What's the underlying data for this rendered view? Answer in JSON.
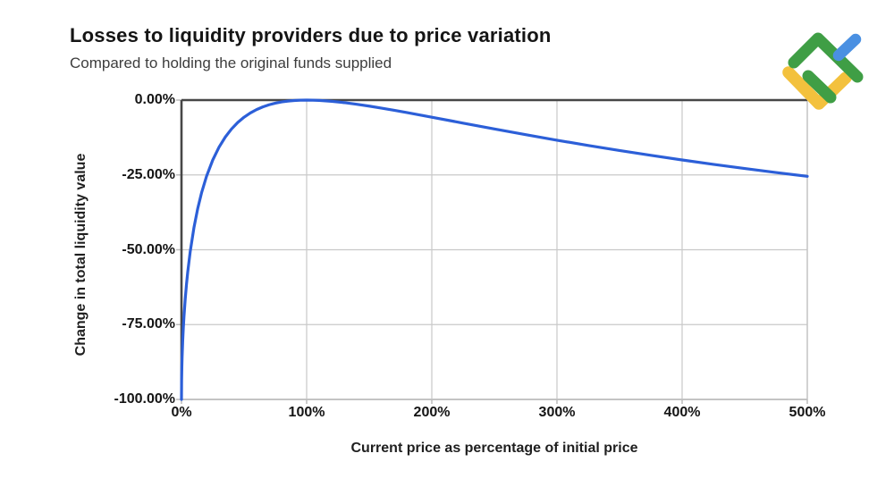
{
  "header": {
    "title": "Losses to liquidity providers due to price variation",
    "subtitle": "Compared to holding the original funds supplied"
  },
  "logo": {
    "name": "litefinance-logo",
    "colors": {
      "green": "#3f9e45",
      "blue": "#4a90e2",
      "yellow": "#f3c13d"
    }
  },
  "colors": {
    "curve": "#2c5fd8",
    "axis_dark": "#474747",
    "border_light": "#c4c4c4",
    "grid": "#c9c9c9",
    "tick_mark": "#bbbbbb",
    "tick_text": "#141414",
    "title_text": "#151515",
    "subtitle_text": "#3d3d3d"
  },
  "chart_data": {
    "type": "line",
    "title": "Losses to liquidity providers due to price variation",
    "subtitle": "Compared to holding the original funds supplied",
    "xlabel": "Current price as percentage of initial price",
    "ylabel": "Change in total liquidity value",
    "x_range": [
      0,
      500
    ],
    "y_range": [
      -100,
      0
    ],
    "x_ticks": {
      "values": [
        0,
        100,
        200,
        300,
        400,
        500
      ],
      "labels": [
        "0%",
        "100%",
        "200%",
        "300%",
        "400%",
        "500%"
      ]
    },
    "y_ticks": {
      "values": [
        0,
        -25,
        -50,
        -75,
        -100
      ],
      "labels": [
        "0.00%",
        "-25.00%",
        "-50.00%",
        "-75.00%",
        "-100.00%"
      ]
    },
    "grid": true,
    "legend": "none",
    "series": [
      {
        "name": "Change in total liquidity value vs holding",
        "color": "#2c5fd8",
        "points": [
          [
            0,
            -100
          ],
          [
            0.1,
            -93.68
          ],
          [
            0.3,
            -89.08
          ],
          [
            0.5,
            -85.93
          ],
          [
            1,
            -80.2
          ],
          [
            1.5,
            -75.87
          ],
          [
            2,
            -72.27
          ],
          [
            3,
            -66.37
          ],
          [
            4,
            -61.54
          ],
          [
            5,
            -57.41
          ],
          [
            7,
            -50.55
          ],
          [
            10,
            -42.5
          ],
          [
            13,
            -36.19
          ],
          [
            16,
            -31.03
          ],
          [
            20,
            -25.46
          ],
          [
            25,
            -20
          ],
          [
            30,
            -15.73
          ],
          [
            35,
            -12.35
          ],
          [
            40,
            -9.65
          ],
          [
            45,
            -7.47
          ],
          [
            50,
            -5.72
          ],
          [
            55,
            -4.31
          ],
          [
            60,
            -3.18
          ],
          [
            65,
            -2.28
          ],
          [
            70,
            -1.57
          ],
          [
            75,
            -1.03
          ],
          [
            80,
            -0.62
          ],
          [
            85,
            -0.33
          ],
          [
            90,
            -0.14
          ],
          [
            95,
            -0.03
          ],
          [
            100,
            0
          ],
          [
            105,
            -0.03
          ],
          [
            110,
            -0.11
          ],
          [
            120,
            -0.41
          ],
          [
            130,
            -0.85
          ],
          [
            140,
            -1.4
          ],
          [
            150,
            -2.02
          ],
          [
            160,
            -2.7
          ],
          [
            170,
            -3.42
          ],
          [
            180,
            -4.17
          ],
          [
            190,
            -4.94
          ],
          [
            200,
            -5.72
          ],
          [
            225,
            -7.69
          ],
          [
            250,
            -9.65
          ],
          [
            275,
            -11.56
          ],
          [
            300,
            -13.4
          ],
          [
            325,
            -15.16
          ],
          [
            350,
            -16.85
          ],
          [
            375,
            -18.46
          ],
          [
            400,
            -20
          ],
          [
            425,
            -21.47
          ],
          [
            450,
            -22.86
          ],
          [
            475,
            -24.19
          ],
          [
            500,
            -25.46
          ]
        ]
      }
    ]
  }
}
